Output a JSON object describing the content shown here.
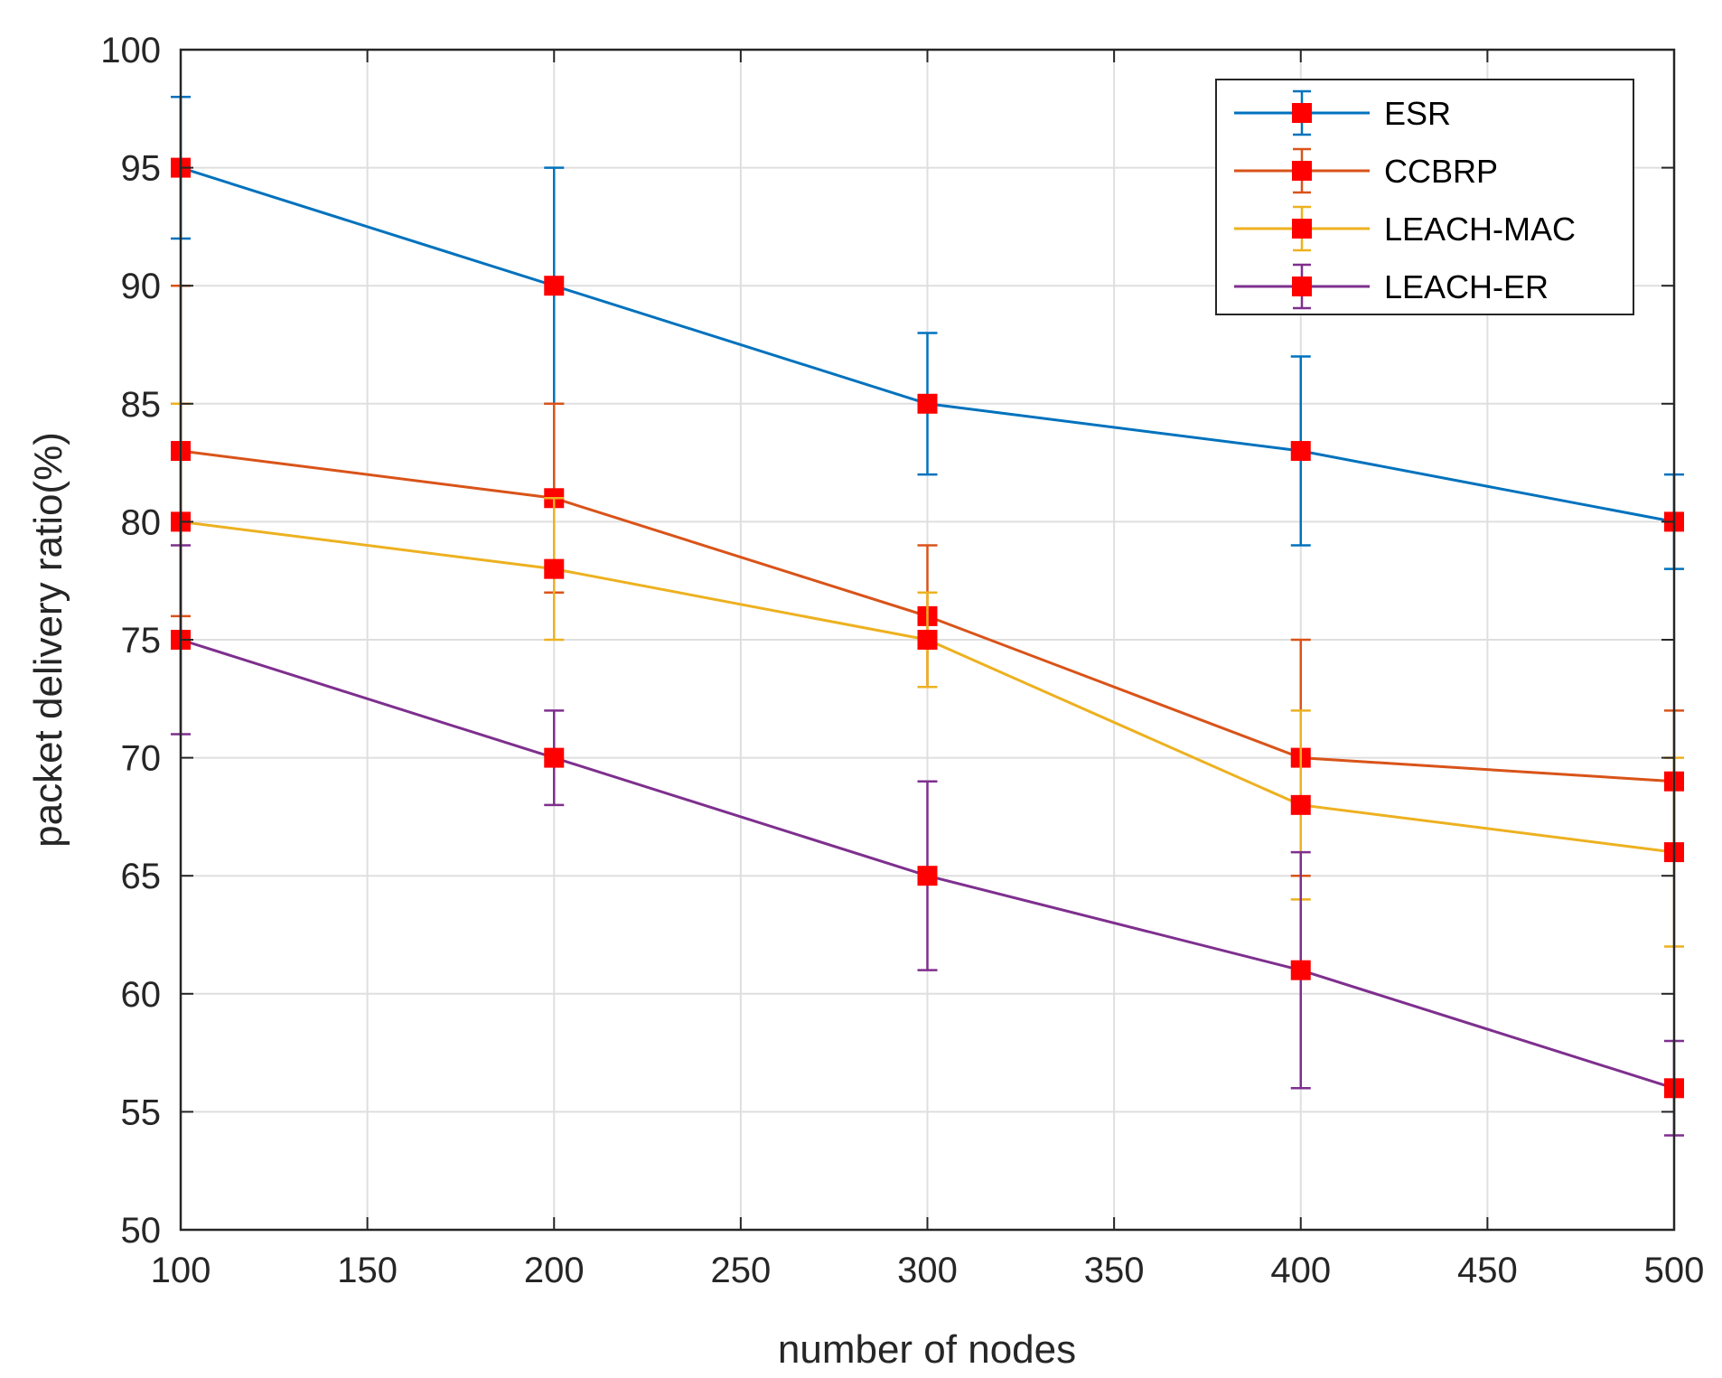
{
  "chart_data": {
    "type": "line",
    "title": "",
    "xlabel": "number of nodes",
    "ylabel": "packet delivery ratio(%)",
    "xlim": [
      100,
      500
    ],
    "ylim": [
      50,
      100
    ],
    "xticks": [
      "100",
      "150",
      "200",
      "250",
      "300",
      "350",
      "400",
      "450",
      "500"
    ],
    "yticks": [
      "50",
      "55",
      "60",
      "65",
      "70",
      "75",
      "80",
      "85",
      "90",
      "95",
      "100"
    ],
    "grid": true,
    "legend_position": "top-right",
    "x": [
      100,
      200,
      300,
      400,
      500
    ],
    "series": [
      {
        "name": "ESR",
        "color": "#0072BD",
        "values": [
          95,
          90,
          85,
          83,
          80
        ],
        "error": [
          3,
          5,
          3,
          4,
          2
        ]
      },
      {
        "name": "CCBRP",
        "color": "#D95319",
        "values": [
          83,
          81,
          76,
          70,
          69
        ],
        "error": [
          7,
          4,
          3,
          5,
          3
        ]
      },
      {
        "name": "LEACH-MAC",
        "color": "#EDB120",
        "values": [
          80,
          78,
          75,
          68,
          66
        ],
        "error": [
          5,
          3,
          2,
          4,
          4
        ]
      },
      {
        "name": "LEACH-ER",
        "color": "#7E2F8E",
        "values": [
          75,
          70,
          65,
          61,
          56
        ],
        "error": [
          4,
          2,
          4,
          5,
          2
        ]
      }
    ],
    "marker_color": "#FF0000"
  }
}
